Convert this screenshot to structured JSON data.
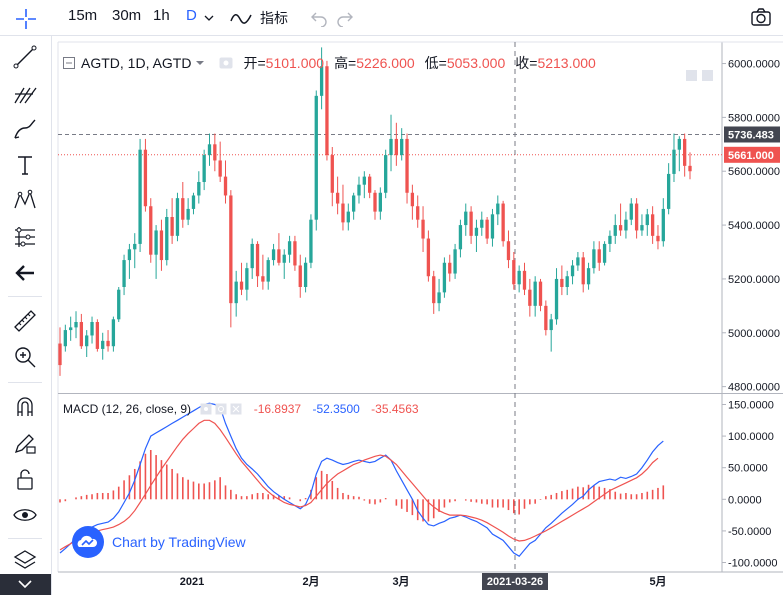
{
  "toolbar": {
    "intervals": [
      "15m",
      "30m",
      "1h",
      "D"
    ],
    "active_interval": "D",
    "indicators_label": "指标"
  },
  "legend": {
    "symbol": "AGTD, 1D, AGTD",
    "open_label": "开=",
    "open": "5101.000",
    "high_label": "高=",
    "high": "5226.000",
    "low_label": "低=",
    "low": "5053.000",
    "close_label": "收=",
    "close": "5213.000"
  },
  "price_axis": {
    "ticks": [
      "6000.0000",
      "5800.0000",
      "5600.0000",
      "5400.0000",
      "5200.0000",
      "5000.0000",
      "4800.0000"
    ],
    "badge_dark": "5736.483",
    "badge_red": "5661.000"
  },
  "macd_axis": {
    "ticks": [
      "150.0000",
      "100.0000",
      "50.0000",
      "0.0000",
      "-50.0000",
      "-100.0000"
    ]
  },
  "time_axis": {
    "ticks": [
      "2021",
      "2月",
      "3月",
      "5月"
    ],
    "crosshair_label": "2021-03-26"
  },
  "macd_legend": {
    "title": "MACD (12, 26, close, 9)",
    "v1": "-16.8937",
    "v2": "-52.3500",
    "v3": "-35.4563"
  },
  "watermark": {
    "text": "Chart by TradingView"
  },
  "colors": {
    "up": "#26a69a",
    "down": "#ef5350",
    "macd": "#2962ff",
    "signal": "#ef5350",
    "accent": "#2962ff"
  },
  "chart_data": [
    {
      "type": "candlestick",
      "title": "AGTD, 1D, AGTD",
      "ylim": [
        4780,
        6080
      ],
      "candles": [
        {
          "o": 4960,
          "h": 5020,
          "l": 4840,
          "c": 4880
        },
        {
          "o": 4950,
          "h": 5030,
          "l": 4930,
          "c": 5010
        },
        {
          "o": 5010,
          "h": 5060,
          "l": 4970,
          "c": 5020
        },
        {
          "o": 5020,
          "h": 5080,
          "l": 4980,
          "c": 5040
        },
        {
          "o": 5040,
          "h": 5070,
          "l": 4940,
          "c": 4950
        },
        {
          "o": 4950,
          "h": 5010,
          "l": 4910,
          "c": 4990
        },
        {
          "o": 4990,
          "h": 5060,
          "l": 4960,
          "c": 5040
        },
        {
          "o": 5040,
          "h": 5050,
          "l": 4930,
          "c": 4940
        },
        {
          "o": 4940,
          "h": 5000,
          "l": 4900,
          "c": 4970
        },
        {
          "o": 4970,
          "h": 5010,
          "l": 4930,
          "c": 4950
        },
        {
          "o": 4950,
          "h": 5060,
          "l": 4930,
          "c": 5050
        },
        {
          "o": 5050,
          "h": 5170,
          "l": 5040,
          "c": 5160
        },
        {
          "o": 5170,
          "h": 5290,
          "l": 5140,
          "c": 5270
        },
        {
          "o": 5270,
          "h": 5330,
          "l": 5200,
          "c": 5310
        },
        {
          "o": 5310,
          "h": 5370,
          "l": 5240,
          "c": 5330
        },
        {
          "o": 5330,
          "h": 5720,
          "l": 5300,
          "c": 5680
        },
        {
          "o": 5680,
          "h": 5720,
          "l": 5450,
          "c": 5470
        },
        {
          "o": 5470,
          "h": 5500,
          "l": 5260,
          "c": 5290
        },
        {
          "o": 5290,
          "h": 5400,
          "l": 5200,
          "c": 5380
        },
        {
          "o": 5380,
          "h": 5420,
          "l": 5230,
          "c": 5270
        },
        {
          "o": 5270,
          "h": 5460,
          "l": 5250,
          "c": 5430
        },
        {
          "o": 5430,
          "h": 5500,
          "l": 5330,
          "c": 5360
        },
        {
          "o": 5360,
          "h": 5520,
          "l": 5340,
          "c": 5500
        },
        {
          "o": 5500,
          "h": 5560,
          "l": 5390,
          "c": 5420
        },
        {
          "o": 5420,
          "h": 5500,
          "l": 5400,
          "c": 5460
        },
        {
          "o": 5460,
          "h": 5520,
          "l": 5440,
          "c": 5510
        },
        {
          "o": 5510,
          "h": 5600,
          "l": 5480,
          "c": 5560
        },
        {
          "o": 5560,
          "h": 5680,
          "l": 5530,
          "c": 5660
        },
        {
          "o": 5660,
          "h": 5740,
          "l": 5620,
          "c": 5700
        },
        {
          "o": 5700,
          "h": 5740,
          "l": 5600,
          "c": 5640
        },
        {
          "o": 5640,
          "h": 5710,
          "l": 5560,
          "c": 5580
        },
        {
          "o": 5580,
          "h": 5640,
          "l": 5480,
          "c": 5510
        },
        {
          "o": 5510,
          "h": 5530,
          "l": 5020,
          "c": 5110
        },
        {
          "o": 5110,
          "h": 5230,
          "l": 5060,
          "c": 5190
        },
        {
          "o": 5190,
          "h": 5260,
          "l": 5140,
          "c": 5160
        },
        {
          "o": 5160,
          "h": 5260,
          "l": 5120,
          "c": 5240
        },
        {
          "o": 5240,
          "h": 5350,
          "l": 5200,
          "c": 5330
        },
        {
          "o": 5330,
          "h": 5340,
          "l": 5170,
          "c": 5210
        },
        {
          "o": 5210,
          "h": 5290,
          "l": 5160,
          "c": 5190
        },
        {
          "o": 5190,
          "h": 5280,
          "l": 5160,
          "c": 5270
        },
        {
          "o": 5270,
          "h": 5330,
          "l": 5250,
          "c": 5310
        },
        {
          "o": 5310,
          "h": 5370,
          "l": 5250,
          "c": 5260
        },
        {
          "o": 5260,
          "h": 5310,
          "l": 5200,
          "c": 5290
        },
        {
          "o": 5290,
          "h": 5360,
          "l": 5260,
          "c": 5340
        },
        {
          "o": 5340,
          "h": 5360,
          "l": 5230,
          "c": 5250
        },
        {
          "o": 5250,
          "h": 5290,
          "l": 5130,
          "c": 5170
        },
        {
          "o": 5170,
          "h": 5280,
          "l": 5150,
          "c": 5260
        },
        {
          "o": 5260,
          "h": 5440,
          "l": 5240,
          "c": 5420
        },
        {
          "o": 5420,
          "h": 5900,
          "l": 5380,
          "c": 5880
        },
        {
          "o": 5880,
          "h": 6060,
          "l": 5830,
          "c": 5990
        },
        {
          "o": 5990,
          "h": 6010,
          "l": 5640,
          "c": 5660
        },
        {
          "o": 5660,
          "h": 5690,
          "l": 5470,
          "c": 5520
        },
        {
          "o": 5520,
          "h": 5580,
          "l": 5440,
          "c": 5480
        },
        {
          "o": 5480,
          "h": 5550,
          "l": 5380,
          "c": 5410
        },
        {
          "o": 5410,
          "h": 5480,
          "l": 5380,
          "c": 5450
        },
        {
          "o": 5450,
          "h": 5520,
          "l": 5420,
          "c": 5510
        },
        {
          "o": 5510,
          "h": 5580,
          "l": 5480,
          "c": 5550
        },
        {
          "o": 5550,
          "h": 5600,
          "l": 5500,
          "c": 5580
        },
        {
          "o": 5580,
          "h": 5590,
          "l": 5500,
          "c": 5520
        },
        {
          "o": 5520,
          "h": 5530,
          "l": 5420,
          "c": 5450
        },
        {
          "o": 5450,
          "h": 5540,
          "l": 5420,
          "c": 5520
        },
        {
          "o": 5520,
          "h": 5680,
          "l": 5500,
          "c": 5660
        },
        {
          "o": 5660,
          "h": 5810,
          "l": 5600,
          "c": 5720
        },
        {
          "o": 5720,
          "h": 5780,
          "l": 5620,
          "c": 5660
        },
        {
          "o": 5660,
          "h": 5760,
          "l": 5640,
          "c": 5720
        },
        {
          "o": 5720,
          "h": 5740,
          "l": 5480,
          "c": 5520
        },
        {
          "o": 5520,
          "h": 5550,
          "l": 5420,
          "c": 5470
        },
        {
          "o": 5470,
          "h": 5510,
          "l": 5390,
          "c": 5420
        },
        {
          "o": 5420,
          "h": 5470,
          "l": 5300,
          "c": 5350
        },
        {
          "o": 5350,
          "h": 5380,
          "l": 5190,
          "c": 5210
        },
        {
          "o": 5210,
          "h": 5230,
          "l": 5070,
          "c": 5110
        },
        {
          "o": 5110,
          "h": 5200,
          "l": 5080,
          "c": 5150
        },
        {
          "o": 5150,
          "h": 5280,
          "l": 5130,
          "c": 5260
        },
        {
          "o": 5260,
          "h": 5290,
          "l": 5190,
          "c": 5220
        },
        {
          "o": 5220,
          "h": 5330,
          "l": 5200,
          "c": 5310
        },
        {
          "o": 5310,
          "h": 5420,
          "l": 5280,
          "c": 5400
        },
        {
          "o": 5400,
          "h": 5480,
          "l": 5360,
          "c": 5450
        },
        {
          "o": 5450,
          "h": 5470,
          "l": 5330,
          "c": 5360
        },
        {
          "o": 5360,
          "h": 5420,
          "l": 5300,
          "c": 5390
        },
        {
          "o": 5390,
          "h": 5450,
          "l": 5360,
          "c": 5420
        },
        {
          "o": 5420,
          "h": 5430,
          "l": 5330,
          "c": 5350
        },
        {
          "o": 5350,
          "h": 5460,
          "l": 5320,
          "c": 5440
        },
        {
          "o": 5440,
          "h": 5510,
          "l": 5400,
          "c": 5480
        },
        {
          "o": 5480,
          "h": 5490,
          "l": 5320,
          "c": 5340
        },
        {
          "o": 5340,
          "h": 5380,
          "l": 5240,
          "c": 5270
        },
        {
          "o": 5270,
          "h": 5300,
          "l": 5160,
          "c": 5180
        },
        {
          "o": 5180,
          "h": 5250,
          "l": 5150,
          "c": 5230
        },
        {
          "o": 5230,
          "h": 5260,
          "l": 5140,
          "c": 5160
        },
        {
          "o": 5160,
          "h": 5200,
          "l": 5060,
          "c": 5100
        },
        {
          "o": 5100,
          "h": 5210,
          "l": 5060,
          "c": 5190
        },
        {
          "o": 5190,
          "h": 5200,
          "l": 5080,
          "c": 5100
        },
        {
          "o": 5100,
          "h": 5120,
          "l": 4990,
          "c": 5010
        },
        {
          "o": 5010,
          "h": 5070,
          "l": 4930,
          "c": 5050
        },
        {
          "o": 5050,
          "h": 5240,
          "l": 5030,
          "c": 5200
        },
        {
          "o": 5200,
          "h": 5250,
          "l": 5140,
          "c": 5170
        },
        {
          "o": 5170,
          "h": 5230,
          "l": 5140,
          "c": 5210
        },
        {
          "o": 5210,
          "h": 5270,
          "l": 5180,
          "c": 5250
        },
        {
          "o": 5250,
          "h": 5300,
          "l": 5230,
          "c": 5280
        },
        {
          "o": 5280,
          "h": 5300,
          "l": 5150,
          "c": 5180
        },
        {
          "o": 5180,
          "h": 5260,
          "l": 5160,
          "c": 5240
        },
        {
          "o": 5240,
          "h": 5340,
          "l": 5220,
          "c": 5310
        },
        {
          "o": 5310,
          "h": 5340,
          "l": 5230,
          "c": 5260
        },
        {
          "o": 5260,
          "h": 5340,
          "l": 5250,
          "c": 5330
        },
        {
          "o": 5330,
          "h": 5380,
          "l": 5300,
          "c": 5360
        },
        {
          "o": 5360,
          "h": 5440,
          "l": 5330,
          "c": 5400
        },
        {
          "o": 5400,
          "h": 5480,
          "l": 5360,
          "c": 5380
        },
        {
          "o": 5380,
          "h": 5450,
          "l": 5350,
          "c": 5420
        },
        {
          "o": 5420,
          "h": 5500,
          "l": 5400,
          "c": 5480
        },
        {
          "o": 5480,
          "h": 5500,
          "l": 5350,
          "c": 5380
        },
        {
          "o": 5380,
          "h": 5440,
          "l": 5360,
          "c": 5400
        },
        {
          "o": 5400,
          "h": 5460,
          "l": 5360,
          "c": 5440
        },
        {
          "o": 5440,
          "h": 5470,
          "l": 5330,
          "c": 5360
        },
        {
          "o": 5360,
          "h": 5400,
          "l": 5310,
          "c": 5340
        },
        {
          "o": 5340,
          "h": 5500,
          "l": 5320,
          "c": 5460
        },
        {
          "o": 5460,
          "h": 5630,
          "l": 5440,
          "c": 5590
        },
        {
          "o": 5590,
          "h": 5740,
          "l": 5560,
          "c": 5680
        },
        {
          "o": 5680,
          "h": 5730,
          "l": 5600,
          "c": 5720
        },
        {
          "o": 5720,
          "h": 5740,
          "l": 5580,
          "c": 5620
        },
        {
          "o": 5620,
          "h": 5670,
          "l": 5570,
          "c": 5600
        }
      ]
    },
    {
      "type": "line",
      "title": "MACD (12, 26, close, 9)",
      "ylim": [
        -115,
        165
      ],
      "series": [
        {
          "name": "MACD",
          "values": [
            -85,
            -78,
            -70,
            -62,
            -55,
            -48,
            -44,
            -40,
            -38,
            -36,
            -30,
            -20,
            -5,
            10,
            30,
            55,
            80,
            100,
            105,
            110,
            115,
            120,
            125,
            130,
            135,
            140,
            145,
            150,
            152,
            150,
            145,
            120,
            100,
            80,
            65,
            55,
            48,
            40,
            30,
            20,
            12,
            6,
            0,
            -5,
            -10,
            -15,
            -8,
            10,
            40,
            60,
            65,
            62,
            58,
            55,
            57,
            60,
            62,
            60,
            58,
            60,
            65,
            70,
            62,
            45,
            30,
            15,
            0,
            -18,
            -30,
            -40,
            -42,
            -38,
            -35,
            -30,
            -28,
            -25,
            -28,
            -32,
            -35,
            -40,
            -45,
            -55,
            -60,
            -65,
            -75,
            -85,
            -90,
            -80,
            -70,
            -65,
            -55,
            -45,
            -38,
            -30,
            -22,
            -15,
            -8,
            0,
            5,
            15,
            22,
            28,
            30,
            32,
            30,
            35,
            33,
            36,
            40,
            50,
            62,
            75,
            85,
            92
          ]
        },
        {
          "name": "Signal",
          "values": [
            -80,
            -75,
            -70,
            -65,
            -60,
            -55,
            -52,
            -50,
            -48,
            -46,
            -44,
            -40,
            -35,
            -28,
            -18,
            -5,
            8,
            22,
            35,
            48,
            60,
            72,
            84,
            95,
            104,
            112,
            120,
            125,
            125,
            120,
            110,
            98,
            85,
            72,
            60,
            50,
            40,
            30,
            20,
            12,
            5,
            0,
            -5,
            -8,
            -10,
            -12,
            -10,
            -5,
            5,
            15,
            25,
            33,
            40,
            45,
            50,
            55,
            58,
            62,
            65,
            68,
            70,
            68,
            62,
            55,
            45,
            35,
            25,
            15,
            5,
            -5,
            -12,
            -18,
            -22,
            -25,
            -25,
            -25,
            -26,
            -28,
            -30,
            -33,
            -37,
            -42,
            -47,
            -52,
            -58,
            -63,
            -66,
            -65,
            -62,
            -58,
            -54,
            -50,
            -45,
            -40,
            -35,
            -30,
            -25,
            -20,
            -15,
            -10,
            -4,
            2,
            8,
            14,
            18,
            22,
            26,
            30,
            34,
            40,
            48,
            58,
            65
          ]
        }
      ],
      "histogram": [
        -5,
        -3,
        0,
        3,
        5,
        7,
        8,
        10,
        10,
        10,
        14,
        20,
        30,
        38,
        48,
        60,
        72,
        78,
        70,
        62,
        55,
        48,
        41,
        35,
        31,
        28,
        25,
        25,
        27,
        30,
        35,
        22,
        15,
        8,
        5,
        5,
        8,
        10,
        10,
        8,
        7,
        6,
        5,
        3,
        0,
        -3,
        2,
        15,
        35,
        45,
        40,
        29,
        18,
        10,
        7,
        5,
        4,
        -2,
        -7,
        -8,
        -5,
        2,
        0,
        -10,
        -15,
        -20,
        -25,
        -33,
        -35,
        -35,
        -30,
        -20,
        -13,
        -5,
        -3,
        0,
        -2,
        -4,
        -5,
        -7,
        -8,
        -13,
        -13,
        -13,
        -17,
        -22,
        -24,
        -15,
        -8,
        -7,
        -1,
        5,
        7,
        10,
        13,
        15,
        17,
        20,
        19,
        23,
        22,
        20,
        18,
        16,
        12,
        9,
        10,
        8,
        8,
        10,
        12,
        15,
        18,
        22
      ]
    }
  ]
}
